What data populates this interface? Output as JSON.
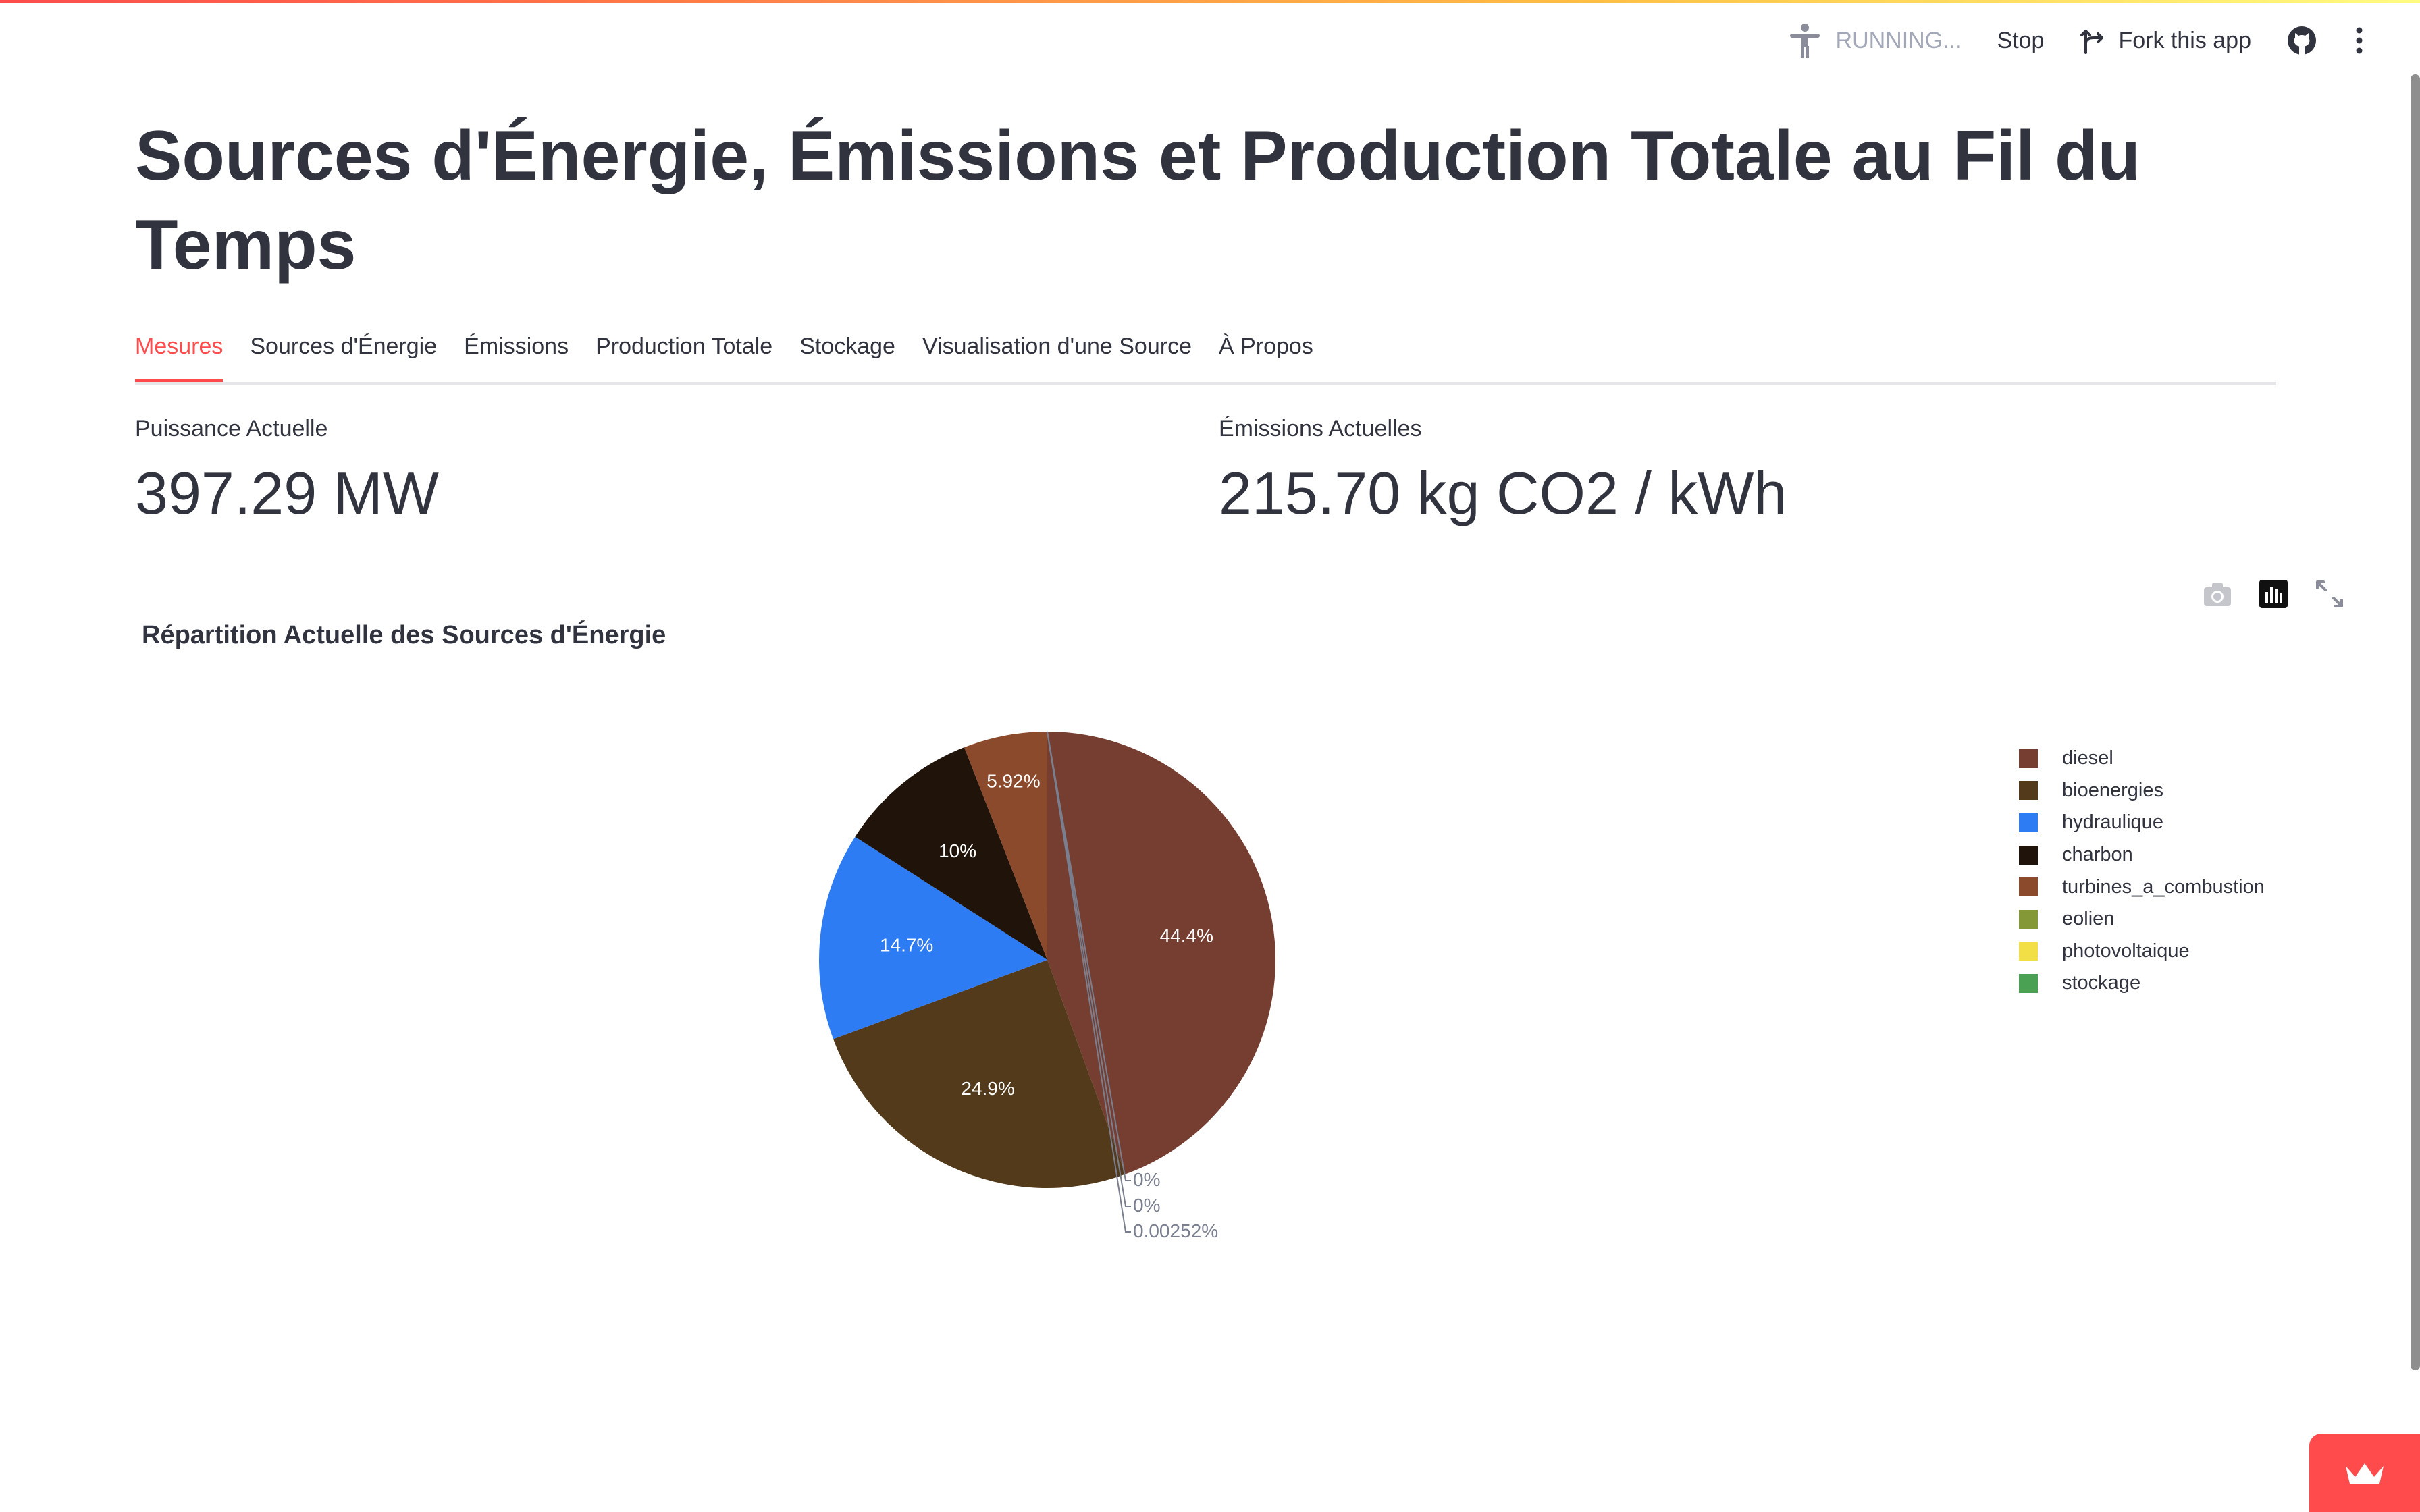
{
  "toolbar": {
    "status": "RUNNING...",
    "stop_label": "Stop",
    "fork_label": "Fork this app"
  },
  "page": {
    "title": "Sources d'Énergie, Émissions et Production Totale au Fil du Temps"
  },
  "tabs": [
    {
      "label": "Mesures",
      "active": true
    },
    {
      "label": "Sources d'Énergie",
      "active": false
    },
    {
      "label": "Émissions",
      "active": false
    },
    {
      "label": "Production Totale",
      "active": false
    },
    {
      "label": "Stockage",
      "active": false
    },
    {
      "label": "Visualisation d'une Source",
      "active": false
    },
    {
      "label": "À Propos",
      "active": false
    }
  ],
  "metrics": {
    "power": {
      "label": "Puissance Actuelle",
      "value": "397.29 MW"
    },
    "emissions": {
      "label": "Émissions Actuelles",
      "value": "215.70 kg CO2 / kWh"
    }
  },
  "chart_data": {
    "type": "pie",
    "title": "Répartition Actuelle des Sources d'Énergie",
    "legend_position": "right",
    "slices": [
      {
        "name": "diesel",
        "percent": 44.4,
        "label": "44.4%",
        "color": "#753e31"
      },
      {
        "name": "bioenergies",
        "percent": 24.9,
        "label": "24.9%",
        "color": "#523a1b"
      },
      {
        "name": "hydraulique",
        "percent": 14.7,
        "label": "14.7%",
        "color": "#2d7cf4"
      },
      {
        "name": "charbon",
        "percent": 10.0,
        "label": "10%",
        "color": "#20140a"
      },
      {
        "name": "turbines_a_combustion",
        "percent": 5.92,
        "label": "5.92%",
        "color": "#8c4a2c"
      },
      {
        "name": "eolien",
        "percent": 0,
        "label": "0%",
        "color": "#849837"
      },
      {
        "name": "photovoltaique",
        "percent": 0,
        "label": "0%",
        "color": "#f2df45"
      },
      {
        "name": "stockage",
        "percent": 0.00252,
        "label": "0.00252%",
        "color": "#4ba153"
      }
    ],
    "legend_order": [
      "diesel",
      "bioenergies",
      "hydraulique",
      "charbon",
      "turbines_a_combustion",
      "eolien",
      "photovoltaique",
      "stockage"
    ]
  },
  "colors": {
    "accent": "#ff4b4b",
    "text": "#31333f",
    "muted": "#a3a8b8"
  },
  "icons": {
    "status": "accessibility-person-icon",
    "fork": "fork-icon",
    "github": "github-icon",
    "menu": "kebab-menu-icon",
    "camera": "camera-icon",
    "chart": "bar-chart-icon",
    "fullscreen": "fullscreen-icon",
    "deploy": "crown-icon"
  }
}
